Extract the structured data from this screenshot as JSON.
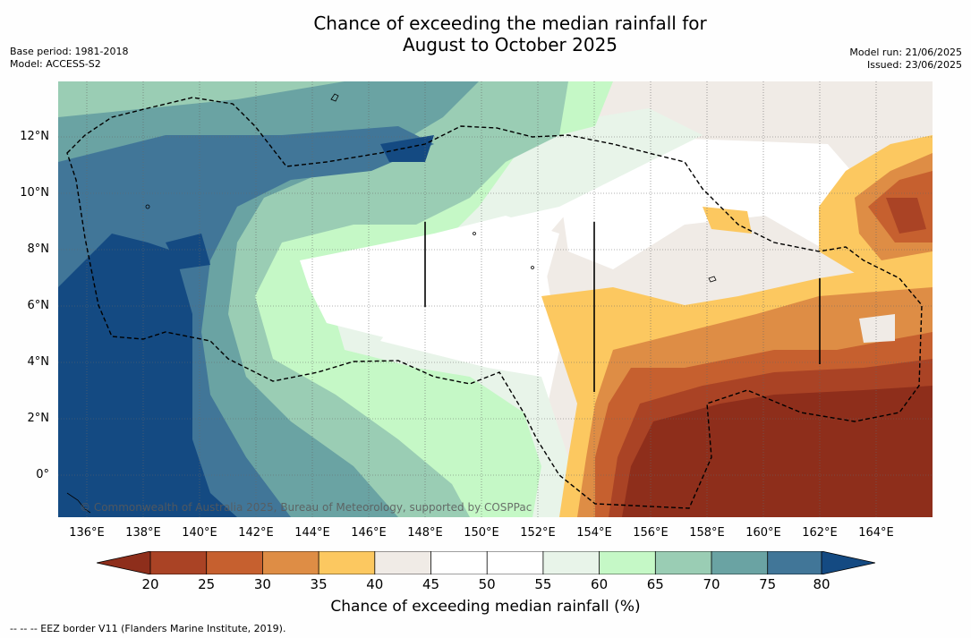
{
  "title_line1": "Chance of exceeding the median rainfall for",
  "title_line2": "August to October 2025",
  "base_period": "Base period: 1981-2018",
  "model": "Model: ACCESS-S2",
  "model_run": "Model run: 21/06/2025",
  "issued": "Issued: 23/06/2025",
  "copyright": "© Commonwealth of Australia 2025, Bureau of Meteorology, supported by COSPPac",
  "colorbar_label": "Chance of exceeding median rainfall (%)",
  "footnote": "--  --  -- EEZ border V11 (Flanders Marine Institute, 2019).",
  "lat_ticks": [
    "12°N",
    "10°N",
    "8°N",
    "6°N",
    "4°N",
    "2°N",
    "0°"
  ],
  "lon_ticks": [
    "136°E",
    "138°E",
    "140°E",
    "142°E",
    "144°E",
    "146°E",
    "148°E",
    "150°E",
    "152°E",
    "154°E",
    "156°E",
    "158°E",
    "160°E",
    "162°E",
    "164°E"
  ],
  "colorbar_ticks": [
    "20",
    "25",
    "30",
    "35",
    "40",
    "45",
    "50",
    "55",
    "60",
    "65",
    "70",
    "75",
    "80"
  ],
  "colors": {
    "below_20": "#8e2e1b",
    "20_25": "#aa4325",
    "25_30": "#c6602f",
    "30_35": "#de8d45",
    "35_40": "#fcc860",
    "40_45": "#f0ebe6",
    "45_50": "#ffffff",
    "50_55": "#ffffff",
    "55_60": "#e8f4e9",
    "60_65": "#c5f8c6",
    "65_70": "#9acdb4",
    "70_75": "#6aa3a3",
    "75_80": "#417698",
    "above_80": "#144a82"
  }
}
